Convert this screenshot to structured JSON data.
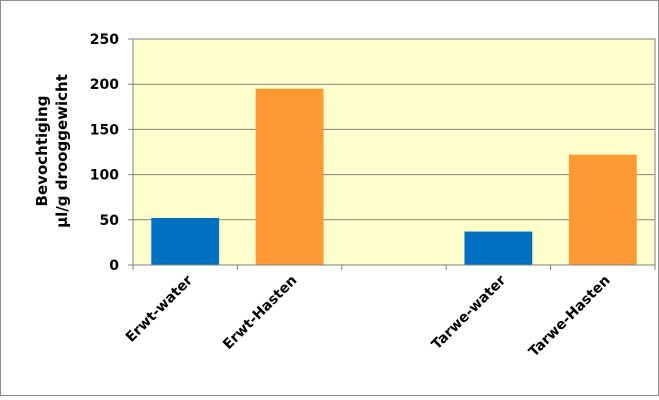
{
  "chart_data": {
    "type": "bar",
    "title": "",
    "ylabel_line1": "Bevochtiging",
    "ylabel_line2": "µl/g drooggewicht",
    "xlabel": "",
    "ylim": [
      0,
      250
    ],
    "yticks": [
      "0",
      "50",
      "100",
      "150",
      "200",
      "250"
    ],
    "categories": [
      "Erwt-water",
      "Erwt-Hasten",
      "",
      "Tarwe-water",
      "Tarwe-Hasten"
    ],
    "values": [
      52,
      195,
      null,
      37,
      122
    ],
    "bar_colors": [
      "#0070c0",
      "#ff9933",
      null,
      "#0070c0",
      "#ff9933"
    ],
    "plot_background": "#ffffcc",
    "grid": true,
    "legend": "none"
  }
}
